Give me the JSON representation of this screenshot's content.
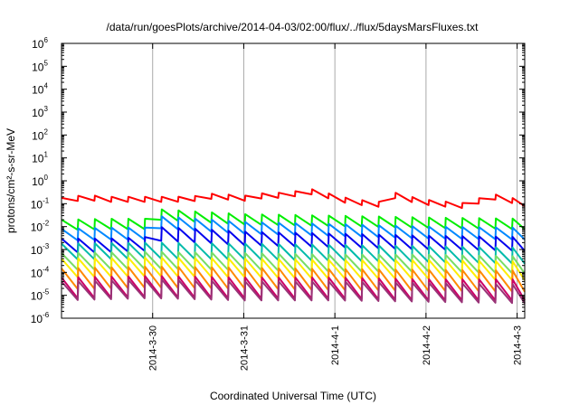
{
  "chart_data": {
    "type": "line",
    "title": "/data/run/goesPlots/archive/2014-04-03/02:00/flux/../flux/5daysMarsFluxes.txt",
    "xlabel": "Coordinated Universal Time (UTC)",
    "ylabel": "protons/cm²-s-sr-MeV",
    "y_scale": "log",
    "ylim": [
      1e-06,
      1000000.0
    ],
    "xlim": [
      "2014-03-29 00:00",
      "2014-04-03 02:00"
    ],
    "grid": "vertical at ticks",
    "legend": "none",
    "y_ticks": [
      {
        "base": "10",
        "exp": "-6"
      },
      {
        "base": "10",
        "exp": "-5"
      },
      {
        "base": "10",
        "exp": "-4"
      },
      {
        "base": "10",
        "exp": "-3"
      },
      {
        "base": "10",
        "exp": "-2"
      },
      {
        "base": "10",
        "exp": "-1"
      },
      {
        "base": "10",
        "exp": "0"
      },
      {
        "base": "10",
        "exp": "1"
      },
      {
        "base": "10",
        "exp": "2"
      },
      {
        "base": "10",
        "exp": "3"
      },
      {
        "base": "10",
        "exp": "4"
      },
      {
        "base": "10",
        "exp": "5"
      },
      {
        "base": "10",
        "exp": "6"
      }
    ],
    "x_ticks": [
      "2014-3-30",
      "2014-3-31",
      "2014-4-1",
      "2014-4-2",
      "2014-4-3"
    ],
    "x_tick_dates": [
      "2014-03-30 00:00",
      "2014-03-31 00:00",
      "2014-04-01 00:00",
      "2014-04-02 00:00",
      "2014-04-03 00:00"
    ],
    "sawtooth_period_hours": 4.4,
    "series": [
      {
        "color": "#ff0000",
        "points": [
          [
            "2014-03-29 00:00",
            0.18
          ],
          [
            "2014-03-29 03:00",
            0.2
          ],
          [
            "2014-03-29 06:00",
            0.25
          ],
          [
            "2014-03-29 12:00",
            0.2
          ],
          [
            "2014-03-29 18:00",
            0.2
          ],
          [
            "2014-03-30 00:00",
            0.2
          ],
          [
            "2014-03-30 06:00",
            0.2
          ],
          [
            "2014-03-30 12:00",
            0.22
          ],
          [
            "2014-03-30 16:00",
            0.28
          ],
          [
            "2014-03-30 20:00",
            0.25
          ],
          [
            "2014-03-31 00:00",
            0.22
          ],
          [
            "2014-03-31 06:00",
            0.3
          ],
          [
            "2014-03-31 12:00",
            0.3
          ],
          [
            "2014-03-31 16:00",
            0.45
          ],
          [
            "2014-03-31 20:00",
            0.4
          ],
          [
            "2014-04-01 00:00",
            0.22
          ],
          [
            "2014-04-01 06:00",
            0.15
          ],
          [
            "2014-04-01 12:00",
            0.12
          ],
          [
            "2014-04-01 16:00",
            0.3
          ],
          [
            "2014-04-01 20:00",
            0.2
          ],
          [
            "2014-04-02 00:00",
            0.15
          ],
          [
            "2014-04-02 06:00",
            0.12
          ],
          [
            "2014-04-02 12:00",
            0.1
          ],
          [
            "2014-04-02 16:00",
            0.3
          ],
          [
            "2014-04-02 20:00",
            0.22
          ],
          [
            "2014-04-03 00:00",
            0.16
          ],
          [
            "2014-04-03 02:00",
            0.13
          ]
        ],
        "cycle_drop_factor": 0.6
      },
      {
        "color": "#00ee00",
        "points": [
          [
            "2014-03-29 00:00",
            0.02
          ],
          [
            "2014-03-29 12:00",
            0.022
          ],
          [
            "2014-03-29 22:00",
            0.022
          ],
          [
            "2014-03-30 00:00",
            0.06
          ],
          [
            "2014-03-30 12:00",
            0.045
          ],
          [
            "2014-03-31 00:00",
            0.035
          ],
          [
            "2014-04-01 00:00",
            0.03
          ],
          [
            "2014-04-02 00:00",
            0.025
          ],
          [
            "2014-04-03 02:00",
            0.022
          ]
        ],
        "cycle_drop_factor": 0.35
      },
      {
        "color": "#0088ff",
        "points": [
          [
            "2014-03-29 00:00",
            0.008
          ],
          [
            "2014-03-29 12:00",
            0.009
          ],
          [
            "2014-03-29 22:00",
            0.009
          ],
          [
            "2014-03-30 00:00",
            0.03
          ],
          [
            "2014-03-30 12:00",
            0.022
          ],
          [
            "2014-03-31 00:00",
            0.016
          ],
          [
            "2014-04-01 00:00",
            0.013
          ],
          [
            "2014-04-02 00:00",
            0.01
          ],
          [
            "2014-04-03 02:00",
            0.009
          ]
        ],
        "cycle_drop_factor": 0.3
      },
      {
        "color": "#0000ee",
        "points": [
          [
            "2014-03-29 00:00",
            0.003
          ],
          [
            "2014-03-29 12:00",
            0.003
          ],
          [
            "2014-03-29 22:00",
            0.0035
          ],
          [
            "2014-03-30 00:00",
            0.01
          ],
          [
            "2014-03-30 12:00",
            0.008
          ],
          [
            "2014-03-31 00:00",
            0.006
          ],
          [
            "2014-04-01 00:00",
            0.005
          ],
          [
            "2014-04-02 00:00",
            0.004
          ],
          [
            "2014-04-03 02:00",
            0.0035
          ]
        ],
        "cycle_drop_factor": 0.25
      },
      {
        "color": "#00bbaa",
        "points": [
          [
            "2014-03-29 00:00",
            0.0018
          ],
          [
            "2014-03-30 00:00",
            0.002
          ],
          [
            "2014-03-31 00:00",
            0.0018
          ],
          [
            "2014-04-01 00:00",
            0.0016
          ],
          [
            "2014-04-02 00:00",
            0.0014
          ],
          [
            "2014-04-03 02:00",
            0.0012
          ]
        ],
        "cycle_drop_factor": 0.2
      },
      {
        "color": "#77dd66",
        "points": [
          [
            "2014-03-29 00:00",
            0.0007
          ],
          [
            "2014-03-30 00:00",
            0.0008
          ],
          [
            "2014-03-31 00:00",
            0.0007
          ],
          [
            "2014-04-01 00:00",
            0.0006
          ],
          [
            "2014-04-02 00:00",
            0.0006
          ],
          [
            "2014-04-03 02:00",
            0.0005
          ]
        ],
        "cycle_drop_factor": 0.18
      },
      {
        "color": "#ffee00",
        "points": [
          [
            "2014-03-29 00:00",
            0.0004
          ],
          [
            "2014-03-30 00:00",
            0.00045
          ],
          [
            "2014-03-31 00:00",
            0.0004
          ],
          [
            "2014-04-01 00:00",
            0.00035
          ],
          [
            "2014-04-02 00:00",
            0.00035
          ],
          [
            "2014-04-03 02:00",
            0.0003
          ]
        ],
        "cycle_drop_factor": 0.15
      },
      {
        "color": "#ff8800",
        "points": [
          [
            "2014-03-29 00:00",
            0.00015
          ],
          [
            "2014-03-30 00:00",
            0.00018
          ],
          [
            "2014-03-31 00:00",
            0.00016
          ],
          [
            "2014-04-01 00:00",
            0.00014
          ],
          [
            "2014-04-02 00:00",
            0.00013
          ],
          [
            "2014-04-03 02:00",
            0.00012
          ]
        ],
        "cycle_drop_factor": 0.12
      },
      {
        "color": "#cc0066",
        "points": [
          [
            "2014-03-29 00:00",
            6e-05
          ],
          [
            "2014-03-30 00:00",
            7e-05
          ],
          [
            "2014-03-31 00:00",
            6e-05
          ],
          [
            "2014-04-01 00:00",
            6e-05
          ],
          [
            "2014-04-02 00:00",
            5e-05
          ],
          [
            "2014-04-03 02:00",
            5e-05
          ]
        ],
        "cycle_drop_factor": 0.12
      },
      {
        "color": "#993377",
        "points": [
          [
            "2014-03-29 00:00",
            4e-05
          ],
          [
            "2014-03-30 00:00",
            5e-05
          ],
          [
            "2014-03-31 00:00",
            4e-05
          ],
          [
            "2014-04-01 00:00",
            4e-05
          ],
          [
            "2014-04-02 00:00",
            3.5e-05
          ],
          [
            "2014-04-03 02:00",
            3e-05
          ]
        ],
        "cycle_drop_factor": 0.15
      }
    ]
  }
}
